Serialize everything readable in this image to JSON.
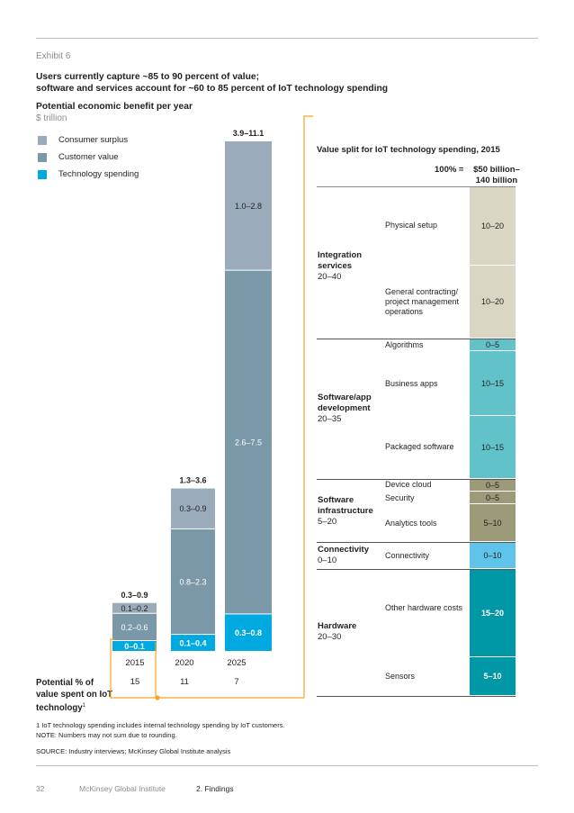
{
  "header": {
    "exhibit": "Exhibit 6",
    "title_line1": "Users currently capture ~85 to 90 percent of value;",
    "title_line2": "software and services account for ~60 to 85 percent of IoT technology spending",
    "subtitle": "Potential economic benefit per year",
    "unit": "$ trillion"
  },
  "colors": {
    "consumer_surplus": "#9aacbb",
    "customer_value": "#7b98a9",
    "technology_spending": "#00a9e0",
    "integration": "#d9d6c4",
    "software_app": "#61c3c9",
    "software_infra": "#9c9a79",
    "connectivity": "#5fc4e9",
    "hardware": "#0098a6",
    "connector": "#f5a623"
  },
  "chart_data": [
    {
      "type": "bar",
      "stacked": true,
      "categories": [
        "2015",
        "2020",
        "2025"
      ],
      "ylabel": "$ trillion",
      "series": [
        {
          "name": "Technology spending",
          "ranges": [
            "0–0.1",
            "0.1–0.4",
            "0.3–0.8"
          ],
          "values": [
            0.05,
            0.25,
            0.55
          ]
        },
        {
          "name": "Customer value",
          "ranges": [
            "0.2–0.6",
            "0.8–2.3",
            "2.6–7.5"
          ],
          "values": [
            0.4,
            1.55,
            5.05
          ]
        },
        {
          "name": "Consumer surplus",
          "ranges": [
            "0.1–0.2",
            "0.3–0.9",
            "1.0–2.8"
          ],
          "values": [
            0.15,
            0.6,
            1.9
          ]
        }
      ],
      "totals": [
        "0.3–0.9",
        "1.3–3.6",
        "3.9–11.1"
      ],
      "potential_pct_label": "Potential % of value spent on IoT technology",
      "potential_pct_sup": "1",
      "potential_pct": [
        "15",
        "11",
        "7"
      ]
    },
    {
      "type": "bar",
      "stacked": true,
      "title": "Value split for IoT technology spending, 2015",
      "total_label": "100% =",
      "total_value": "$50 billion–140 billion",
      "groups": [
        {
          "name": "Integration services",
          "range": "20–40",
          "items": [
            {
              "name": "Physical setup",
              "value": "10–20",
              "mid": 15
            },
            {
              "name": "General contracting/ project management operations",
              "value": "10–20",
              "mid": 15
            }
          ]
        },
        {
          "name": "Software/app development",
          "range": "20–35",
          "items": [
            {
              "name": "Algorithms",
              "value": "0–5",
              "mid": 2.5
            },
            {
              "name": "Business apps",
              "value": "10–15",
              "mid": 12.5
            },
            {
              "name": "Packaged software",
              "value": "10–15",
              "mid": 12.5
            }
          ]
        },
        {
          "name": "Software infrastructure",
          "range": "5–20",
          "items": [
            {
              "name": "Device cloud",
              "value": "0–5",
              "mid": 2.5
            },
            {
              "name": "Security",
              "value": "0–5",
              "mid": 2.5
            },
            {
              "name": "Analytics tools",
              "value": "5–10",
              "mid": 7.5
            }
          ]
        },
        {
          "name": "Connectivity",
          "range": "0–10",
          "items": [
            {
              "name": "Connectivity",
              "value": "0–10",
              "mid": 5
            }
          ]
        },
        {
          "name": "Hardware",
          "range": "20–30",
          "items": [
            {
              "name": "Other hardware costs",
              "value": "15–20",
              "mid": 17.5
            },
            {
              "name": "Sensors",
              "value": "5–10",
              "mid": 7.5
            }
          ]
        }
      ]
    }
  ],
  "notes": {
    "footnote1": "1  IoT technology spending includes internal technology spending by IoT customers.",
    "note": "NOTE: Numbers may not sum due to rounding.",
    "source": "SOURCE: Industry interviews; McKinsey Global Institute analysis"
  },
  "footer": {
    "page": "32",
    "publisher": "McKinsey Global Institute",
    "section": "2. Findings"
  }
}
